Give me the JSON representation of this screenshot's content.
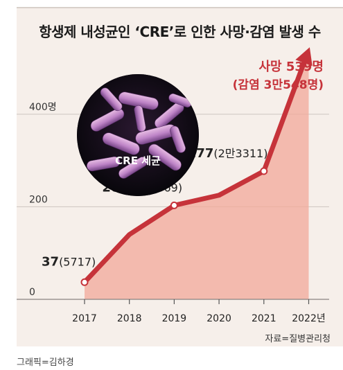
{
  "title": "항생제 내성균인 ‘CRE’로 인한 사망·감염 발생 수",
  "photo_label": "CRE 세균",
  "source": "자료=질병관리청",
  "credit": "그래픽=김하경",
  "colors": {
    "line": "#c6333a",
    "area": "#f2a89a",
    "background": "#f6efea",
    "highlight": "#c6333a"
  },
  "chart_data": {
    "type": "area",
    "title": "항생제 내성균인 ‘CRE’로 인한 사망·감염 발생 수",
    "categories": [
      "2017",
      "2018",
      "2019",
      "2020",
      "2021",
      "2022년"
    ],
    "series": [
      {
        "values": [
          37,
          140,
          203,
          225,
          277,
          539
        ]
      }
    ],
    "yticks": [
      {
        "value": 0,
        "label": "0"
      },
      {
        "value": 200,
        "label": "200"
      },
      {
        "value": 400,
        "label": "400명"
      }
    ],
    "ylim": [
      0,
      560
    ],
    "annotations": [
      {
        "index": 0,
        "bold": "37",
        "paren": "(5717)"
      },
      {
        "index": 2,
        "bold": "203",
        "paren": "(1만5369)"
      },
      {
        "index": 4,
        "bold": "277",
        "paren": "(2만3311)"
      }
    ],
    "highlight": {
      "line1": "사망 539명",
      "line2": "(감염 3만548명)"
    },
    "grid": true
  }
}
